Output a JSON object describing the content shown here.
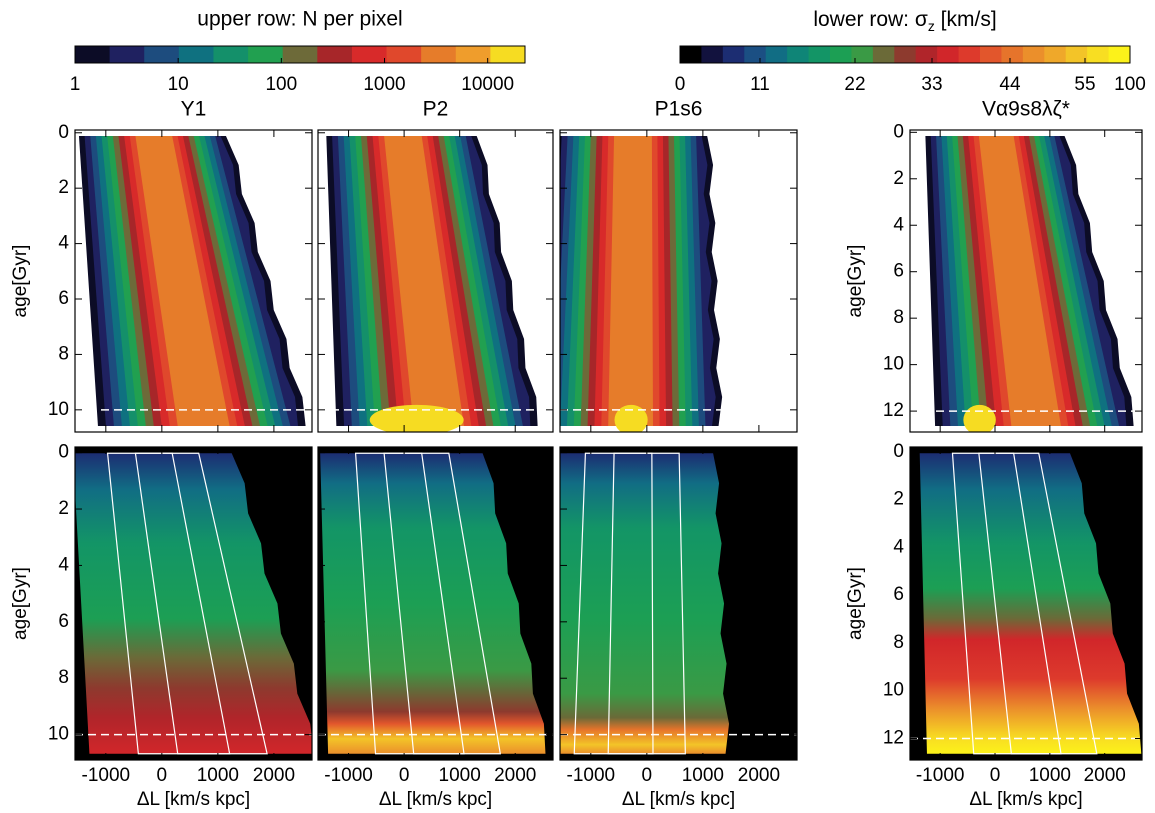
{
  "colorbars": [
    {
      "title": "upper row: N per pixel",
      "log": true,
      "clim": [
        1,
        23000
      ],
      "ticks": [
        1,
        10,
        100,
        1000,
        10000
      ],
      "colors": [
        "#0c0c26",
        "#1f2160",
        "#1d4c7e",
        "#0f7180",
        "#14906a",
        "#21a050",
        "#6d6a39",
        "#a72629",
        "#d82a2a",
        "#e0482c",
        "#e67c2a",
        "#ef9d2c",
        "#f6dc22"
      ]
    },
    {
      "title": [
        "lower row: σ",
        "z",
        " [km/s]"
      ],
      "ticks": [
        0,
        11,
        22,
        33,
        44,
        55,
        100
      ],
      "colors": [
        "#000000",
        "#12123e",
        "#1c2d72",
        "#1b4f83",
        "#116d84",
        "#0f8577",
        "#139566",
        "#1c9f54",
        "#3a9a45",
        "#6b6a38",
        "#8d3a2e",
        "#b0252a",
        "#d1262a",
        "#dd3a2c",
        "#e2562c",
        "#e6742b",
        "#eb8f2b",
        "#efa82a",
        "#f3c428",
        "#f8de22",
        "#fcf21a"
      ]
    }
  ],
  "chart_data": [
    {
      "type": "contour",
      "title": "Y1",
      "ylabel": "age[Gyr]",
      "xlim": [
        -1550,
        2680
      ],
      "ylim": [
        -0.1,
        10.8
      ],
      "y_inverted": true,
      "yticks": [
        0,
        2,
        4,
        6,
        8,
        10
      ],
      "hline": 10
    },
    {
      "type": "contour",
      "title": "P2",
      "xlim": [
        -1550,
        2680
      ],
      "ylim": [
        -0.1,
        10.8
      ],
      "y_inverted": true,
      "hline": 10
    },
    {
      "type": "contour",
      "title": "P1s6",
      "xlim": [
        -1550,
        2680
      ],
      "ylim": [
        -0.1,
        10.8
      ],
      "y_inverted": true,
      "hline": 10
    },
    {
      "type": "contour",
      "title": "Vα9s8λζ*",
      "ylabel": "age[Gyr]",
      "xlim": [
        -1550,
        2680
      ],
      "ylim": [
        -0.1,
        12.9
      ],
      "y_inverted": true,
      "yticks": [
        0,
        2,
        4,
        6,
        8,
        10,
        12
      ],
      "hline": 12
    },
    {
      "type": "contour",
      "ylabel": "age[Gyr]",
      "xlabel": "ΔL [km/s kpc]",
      "xlim": [
        -1550,
        2680
      ],
      "ylim": [
        -0.2,
        10.9
      ],
      "y_inverted": true,
      "xticks": [
        -1000,
        0,
        1000,
        2000
      ],
      "yticks": [
        0,
        2,
        4,
        6,
        8,
        10
      ],
      "hline": 10
    },
    {
      "type": "contour",
      "xlabel": "ΔL [km/s kpc]",
      "xlim": [
        -1550,
        2680
      ],
      "ylim": [
        -0.2,
        10.9
      ],
      "y_inverted": true,
      "xticks": [
        -1000,
        0,
        1000,
        2000
      ],
      "hline": 10
    },
    {
      "type": "contour",
      "xlabel": "ΔL [km/s kpc]",
      "xlim": [
        -1550,
        2680
      ],
      "ylim": [
        -0.2,
        10.9
      ],
      "y_inverted": true,
      "xticks": [
        -1000,
        0,
        1000,
        2000
      ],
      "hline": 10
    },
    {
      "type": "contour",
      "ylabel": "age[Gyr]",
      "xlabel": "ΔL [km/s kpc]",
      "xlim": [
        -1550,
        2680
      ],
      "ylim": [
        -0.2,
        12.9
      ],
      "y_inverted": true,
      "xticks": [
        -1000,
        0,
        1000,
        2000
      ],
      "yticks": [
        0,
        2,
        4,
        6,
        8,
        10,
        12
      ],
      "hline": 12
    }
  ]
}
